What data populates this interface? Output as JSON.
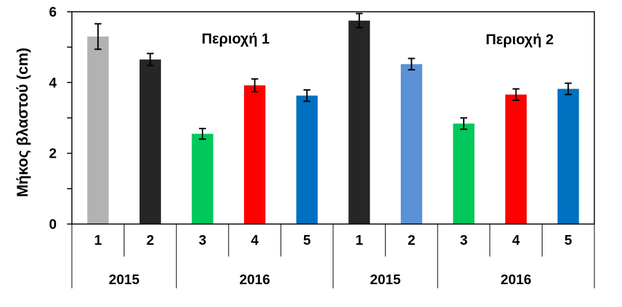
{
  "chart_data": {
    "type": "bar",
    "ylabel": "Μήκος βλαστού (cm)",
    "ylim": [
      0,
      6
    ],
    "yticks": [
      0,
      2,
      4,
      6
    ],
    "grid": false,
    "annotations": [
      "Περιοχή 1",
      "Περιοχή 2"
    ],
    "categories": [
      "1",
      "2",
      "3",
      "4",
      "5",
      "1",
      "2",
      "3",
      "4",
      "5"
    ],
    "year_groups": [
      {
        "label": "2015",
        "count": 2
      },
      {
        "label": "2016",
        "count": 3
      },
      {
        "label": "2015",
        "count": 2
      },
      {
        "label": "2016",
        "count": 3
      }
    ],
    "values": [
      5.3,
      4.65,
      2.55,
      3.92,
      3.63,
      5.75,
      4.52,
      2.84,
      3.66,
      3.82
    ],
    "errors": [
      0.36,
      0.17,
      0.15,
      0.18,
      0.16,
      0.2,
      0.16,
      0.16,
      0.16,
      0.16
    ],
    "colors": [
      "#b2b2b2",
      "#262626",
      "#00c85a",
      "#ff0000",
      "#0070c0",
      "#262626",
      "#5b91d6",
      "#00c85a",
      "#ff0000",
      "#0070c0"
    ]
  }
}
